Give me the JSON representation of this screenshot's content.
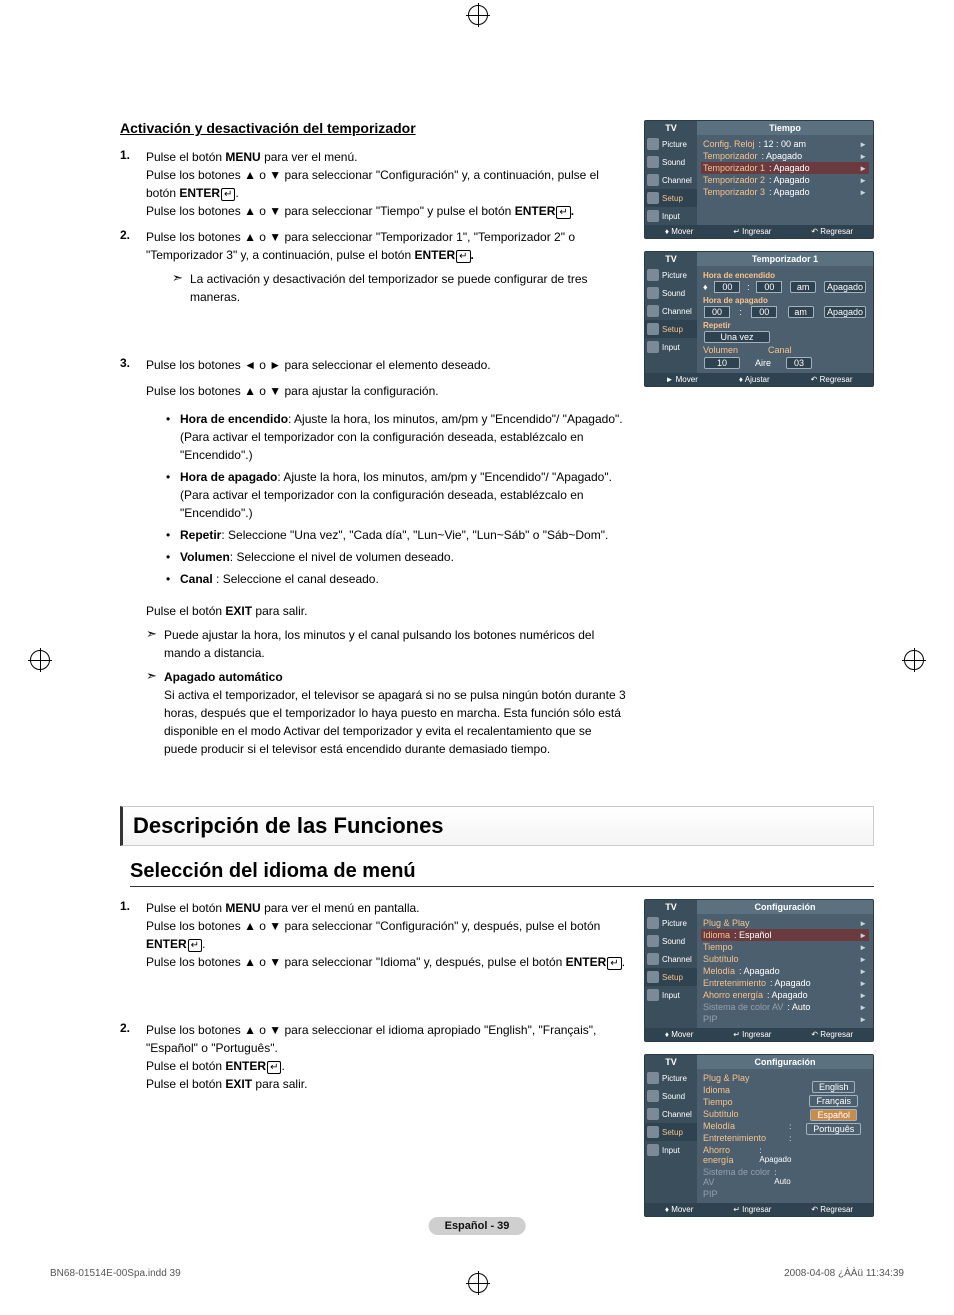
{
  "section1": {
    "title": "Activación y desactivación del temporizador",
    "step1": {
      "num": "1.",
      "line1_a": "Pulse el botón ",
      "line1_b": "MENU",
      "line1_c": " para ver el menú.",
      "line2": "Pulse los botones ▲ o ▼ para seleccionar \"Configuración\" y, a continuación, pulse el botón ",
      "line2_b": "ENTER",
      "line2_c": ".",
      "line3": "Pulse los botones ▲ o ▼ para seleccionar \"Tiempo\" y pulse el botón ",
      "line3_b": "ENTER",
      "line3_c": "."
    },
    "step2": {
      "num": "2.",
      "line1": "Pulse los botones ▲ o ▼ para seleccionar \"Temporizador 1\", \"Temporizador 2\" o \"Temporizador 3\"  y, a continuación, pulse el botón ",
      "line1_b": "ENTER",
      "line1_c": ".",
      "note": "La activación y desactivación del temporizador se puede configurar de tres maneras."
    },
    "step3": {
      "num": "3.",
      "line1": "Pulse los botones ◄ o ► para seleccionar el elemento deseado.",
      "line2": "Pulse los botones ▲ o ▼ para ajustar la configuración.",
      "b1_label": "Hora de encendido",
      "b1_text": ": Ajuste la hora, los minutos, am/pm y \"Encendido\"/ \"Apagado\". (Para activar el temporizador con la configuración deseada, establézcalo en \"Encendido\".)",
      "b2_label": "Hora de apagado",
      "b2_text": ": Ajuste la hora, los minutos, am/pm y \"Encendido\"/ \"Apagado\". (Para activar el temporizador con la configuración deseada, establézcalo en \"Encendido\".)",
      "b3_label": "Repetir",
      "b3_text": ": Seleccione \"Una vez\", \"Cada día\", \"Lun~Vie\", \"Lun~Sáb\" o \"Sáb~Dom\".",
      "b4_label": "Volumen",
      "b4_text": ": Seleccione el nivel de volumen deseado.",
      "b5_label": "Canal",
      "b5_text": " : Seleccione el canal deseado.",
      "exit_a": "Pulse el botón ",
      "exit_b": "EXIT",
      "exit_c": " para salir.",
      "note1": "Puede ajustar la hora, los minutos y el canal pulsando los botones numéricos del mando a distancia.",
      "note2_title": "Apagado automático",
      "note2_body": "Si activa el temporizador, el televisor se apagará si no se pulsa ningún botón durante 3 horas, después que el temporizador lo haya puesto en marcha. Esta función sólo está disponible en el modo Activar del temporizador y evita el recalentamiento que se puede producir si el televisor está encendido durante demasiado tiempo."
    }
  },
  "section2": {
    "h1": "Descripción de las Funciones",
    "h2": "Selección del idioma de menú",
    "step1": {
      "num": "1.",
      "line1_a": "Pulse el botón ",
      "line1_b": "MENU",
      "line1_c": " para ver el menú en pantalla.",
      "line2_a": "Pulse los botones ▲ o ▼ para seleccionar \"Configuración\" y, después, pulse el botón ",
      "line2_b": "ENTER",
      "line2_c": ".",
      "line3_a": "Pulse los botones ▲ o ▼ para seleccionar \"Idioma\" y, después, pulse el botón ",
      "line3_b": "ENTER",
      "line3_c": "."
    },
    "step2": {
      "num": "2.",
      "line1": "Pulse los botones ▲ o ▼ para seleccionar el idioma apropiado \"English\", \"Français\", \"Español\" o \"Português\".",
      "line2_a": "Pulse el botón ",
      "line2_b": "ENTER",
      "line2_c": ".",
      "line3_a": "Pulse el botón ",
      "line3_b": "EXIT",
      "line3_c": " para salir."
    }
  },
  "tv_common": {
    "tab": "TV",
    "side": [
      "Picture",
      "Sound",
      "Channel",
      "Setup",
      "Input"
    ],
    "footer_mover": "Mover",
    "footer_ingresar": "Ingresar",
    "footer_regresar": "Regresar",
    "footer_ajustar": "Ajustar"
  },
  "tv1": {
    "title": "Tiempo",
    "rows": [
      {
        "l": "Config. Reloj",
        "r": ": 12 : 00 am",
        "hl": false
      },
      {
        "l": "Temporizador",
        "r": ": Apagado",
        "hl": false
      },
      {
        "l": "Temporizador 1",
        "r": ": Apagado",
        "hl": true
      },
      {
        "l": "Temporizador 2",
        "r": ": Apagado",
        "hl": false
      },
      {
        "l": "Temporizador 3",
        "r": ": Apagado",
        "hl": false
      }
    ],
    "colors": {
      "bg": "#4b5f6e",
      "side": "#3a4e5c",
      "hl": "#6b3a3e",
      "orange": "#f9c28a"
    }
  },
  "tv2": {
    "title": "Temporizador 1",
    "on_label": "Hora de encendido",
    "off_label": "Hora de apagado",
    "hh": "00",
    "mm": "00",
    "ampm": "am",
    "state": "Apagado",
    "repeat_label": "Repetir",
    "repeat_val": "Una vez",
    "vol_label": "Volumen",
    "vol_val": "10",
    "ch_label": "Canal",
    "ch_src": "Aire",
    "ch_val": "03"
  },
  "tv3": {
    "title": "Configuración",
    "rows": [
      {
        "l": "Plug & Play",
        "r": "",
        "hl": false
      },
      {
        "l": "Idioma",
        "r": ": Español",
        "hl": true
      },
      {
        "l": "Tiempo",
        "r": "",
        "hl": false
      },
      {
        "l": "Subtítulo",
        "r": "",
        "hl": false
      },
      {
        "l": "Melodía",
        "r": ": Apagado",
        "hl": false
      },
      {
        "l": "Entretenimiento",
        "r": ": Apagado",
        "hl": false
      },
      {
        "l": "Ahorro energía",
        "r": ": Apagado",
        "hl": false
      },
      {
        "l": "Sistema de color AV",
        "r": ": Auto",
        "hl": false,
        "dim": true
      },
      {
        "l": "PIP",
        "r": "",
        "hl": false,
        "dim": true
      }
    ]
  },
  "tv4": {
    "title": "Configuración",
    "rows": [
      "Plug & Play",
      "Idioma",
      "Tiempo",
      "Subtítulo",
      "Melodía",
      "Entretenimiento",
      "Ahorro energía",
      "Sistema de color AV",
      "PIP"
    ],
    "options": [
      "English",
      "Français",
      "Español",
      "Português"
    ],
    "selected": "Español",
    "rvals": {
      "Melodía": ":",
      "Entretenimiento": ":",
      "Ahorro energía": ": Apagado",
      "Sistema de color AV": ": Auto"
    }
  },
  "footer": {
    "badge": "Español - 39",
    "left": "BN68-01514E-00Spa.indd   39",
    "right": "2008-04-08   ¿ÀÀü 11:34:39"
  }
}
